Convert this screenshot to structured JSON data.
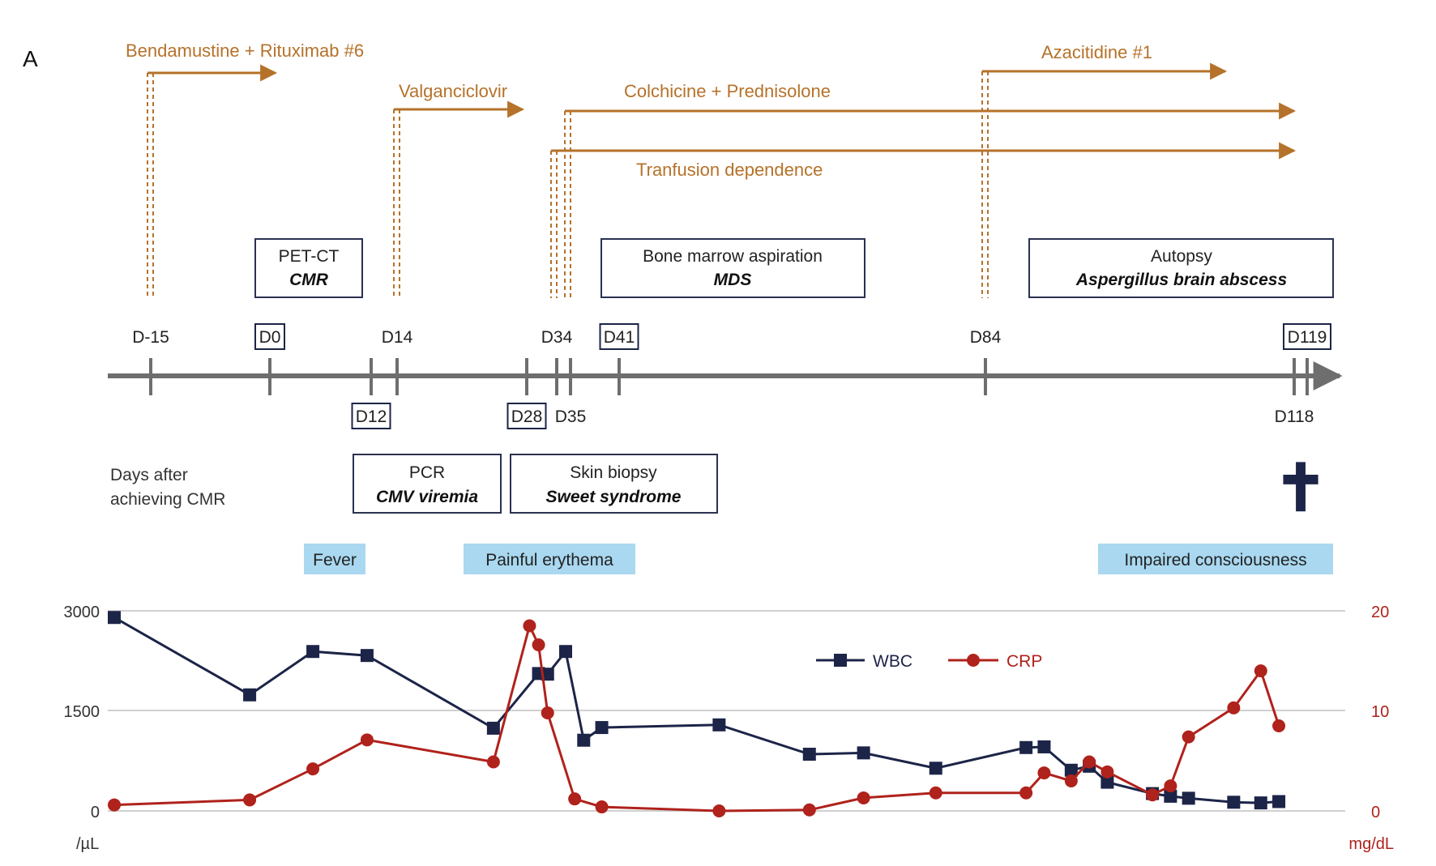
{
  "panel_label": "A",
  "treatments": [
    {
      "label": "Bendamustine + Rituximab #6"
    },
    {
      "label": "Valganciclovir"
    },
    {
      "label": "Colchicine + Prednisolone"
    },
    {
      "label": "Tranfusion dependence"
    },
    {
      "label": "Azacitidine #1"
    }
  ],
  "timeline": {
    "axis_caption": [
      "Days after",
      "achieving CMR"
    ],
    "days": [
      {
        "label": "D-15",
        "boxed": false
      },
      {
        "label": "D0",
        "boxed": true
      },
      {
        "label": "D12",
        "boxed": true
      },
      {
        "label": "D14",
        "boxed": false
      },
      {
        "label": "D28",
        "boxed": true
      },
      {
        "label": "D34",
        "boxed": false
      },
      {
        "label": "D35",
        "boxed": false
      },
      {
        "label": "D41",
        "boxed": true
      },
      {
        "label": "D84",
        "boxed": false
      },
      {
        "label": "D118",
        "boxed": false
      },
      {
        "label": "D119",
        "boxed": true
      }
    ],
    "exam_boxes": [
      {
        "line1": "PET-CT",
        "line2": "CMR"
      },
      {
        "line1": "Bone marrow aspiration",
        "line2": "MDS"
      },
      {
        "line1": "Autopsy",
        "line2": "Aspergillus brain abscess"
      },
      {
        "line1": "PCR",
        "line2": "CMV viremia"
      },
      {
        "line1": "Skin biopsy",
        "line2": "Sweet syndrome"
      }
    ],
    "symptoms": [
      {
        "label": "Fever"
      },
      {
        "label": "Painful erythema"
      },
      {
        "label": "Impaired consciousness"
      }
    ],
    "death_symbol": "✝"
  },
  "colors": {
    "treatment": "#b5722a",
    "axis": "#6e6e6e",
    "wbc": "#1c2448",
    "crp": "#b0221c",
    "symptom_fill": "#a9d8f0",
    "grid": "#d0d0d0"
  },
  "chart_data": {
    "type": "line",
    "x_unit": "Days after achieving CMR",
    "y_left": {
      "unit": "/µL",
      "ticks": [
        "3000",
        "1500",
        "0"
      ],
      "lim": [
        0,
        3000
      ]
    },
    "y_right": {
      "unit": "mg/dL",
      "ticks": [
        "20",
        "10",
        "0"
      ],
      "lim": [
        0,
        20
      ]
    },
    "legend_position": "top-right",
    "grid": true,
    "series": [
      {
        "name": "WBC",
        "axis": "left",
        "marker": "square",
        "x": [
          -15,
          0,
          7,
          13,
          27,
          32,
          33,
          35,
          37,
          39,
          52,
          62,
          68,
          76,
          86,
          88,
          91,
          93,
          95,
          100,
          102,
          104,
          109,
          112,
          114
        ],
        "values": [
          2900,
          1740,
          2390,
          2330,
          1240,
          2060,
          2050,
          2390,
          1060,
          1250,
          1290,
          850,
          870,
          640,
          950,
          960,
          610,
          670,
          430,
          260,
          220,
          190,
          130,
          120,
          140
        ]
      },
      {
        "name": "CRP",
        "axis": "right",
        "marker": "circle",
        "x": [
          -15,
          0,
          7,
          13,
          27,
          31,
          32,
          33,
          36,
          39,
          52,
          62,
          68,
          76,
          86,
          88,
          91,
          93,
          95,
          100,
          102,
          104,
          109,
          112,
          114
        ],
        "values": [
          0.6,
          1.1,
          4.2,
          7.1,
          4.9,
          18.5,
          16.6,
          9.8,
          1.2,
          0.4,
          0.0,
          0.1,
          1.3,
          1.8,
          1.8,
          3.8,
          3.0,
          4.9,
          3.9,
          1.6,
          2.5,
          7.4,
          10.3,
          14.0,
          8.5
        ]
      }
    ]
  }
}
